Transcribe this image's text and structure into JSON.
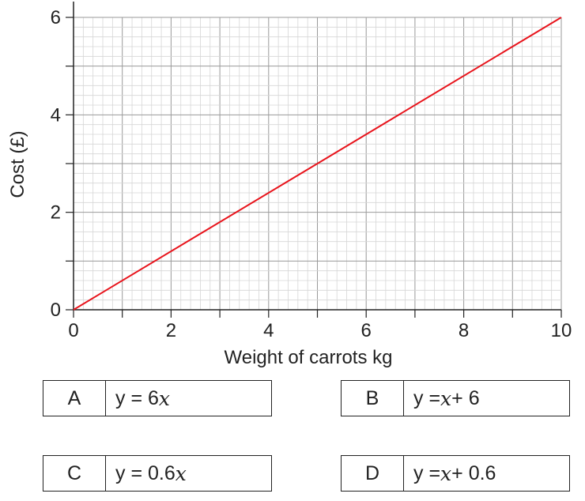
{
  "chart_data": {
    "type": "line",
    "title": "",
    "xlabel": "Weight of carrots kg",
    "ylabel": "Cost (£)",
    "xlim": [
      0,
      10
    ],
    "ylim": [
      0,
      6
    ],
    "x_ticks": [
      0,
      2,
      4,
      6,
      8,
      10
    ],
    "y_ticks": [
      0,
      2,
      4,
      6
    ],
    "grid": true,
    "series": [
      {
        "x": [
          0,
          10
        ],
        "y": [
          0,
          6
        ],
        "color": "#e8141c"
      }
    ]
  },
  "options": [
    {
      "letter": "A",
      "pre": "y = 6",
      "var": "x",
      "post": ""
    },
    {
      "letter": "B",
      "pre": "y = ",
      "var": "x",
      "post": " + 6"
    },
    {
      "letter": "C",
      "pre": "y = 0.6",
      "var": "x",
      "post": ""
    },
    {
      "letter": "D",
      "pre": "y = ",
      "var": "x",
      "post": " + 0.6"
    }
  ]
}
